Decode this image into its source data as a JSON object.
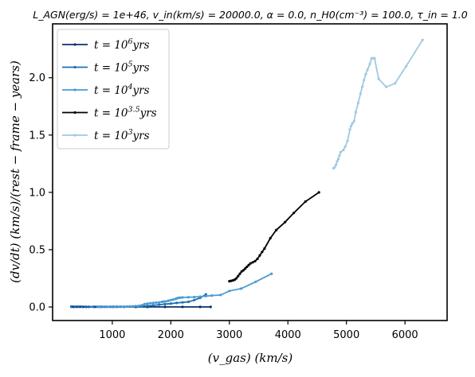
{
  "chart_data": {
    "type": "line",
    "title": "L_AGN(erg/s) = 1e+46, v_in(km/s) = 20000.0, α = 0.0, n_H0(cm⁻³) = 100.0, τ_in = 1.0",
    "xlabel": "(v_gas)   (km/s)",
    "ylabel": "(dv/dt)   (km/s)/(rest − frame − years)",
    "xlim": [
      -20,
      6720
    ],
    "ylim": [
      -0.118,
      2.47
    ],
    "xticks": [
      1000,
      2000,
      3000,
      4000,
      5000,
      6000
    ],
    "xtick_labels": [
      "1000",
      "2000",
      "3000",
      "4000",
      "5000",
      "6000"
    ],
    "yticks": [
      0.0,
      0.5,
      1.0,
      1.5,
      2.0
    ],
    "ytick_labels": [
      "0.0",
      "0.5",
      "1.0",
      "1.5",
      "2.0"
    ],
    "grid": false,
    "legend_position": "top-left",
    "series": [
      {
        "name": "t = 10^6 yrs",
        "color": "#08306b",
        "x": [
          300,
          330,
          360,
          400,
          450,
          500,
          550,
          600,
          700,
          800,
          900,
          1000,
          1200,
          1400,
          1600,
          1900,
          2200,
          2500,
          2680
        ],
        "y": [
          0.003,
          0.002,
          0.002,
          0.002,
          0.002,
          0.001,
          0.001,
          0.001,
          0.001,
          0.001,
          0.001,
          0.001,
          0.001,
          0.0005,
          0.0005,
          0.0005,
          0.0005,
          0.0005,
          0.0005
        ]
      },
      {
        "name": "t = 10^5 yrs",
        "color": "#1f6fb4",
        "x": [
          300,
          360,
          420,
          480,
          540,
          600,
          680,
          740,
          780,
          820,
          860,
          900,
          960,
          1020,
          1080,
          1140,
          1200,
          1300,
          1400,
          1500,
          1600,
          1700,
          1800,
          1900,
          2000,
          2100,
          2200,
          2300,
          2400,
          2500,
          2600
        ],
        "y": [
          0.004,
          0.003,
          0.003,
          0.003,
          0.002,
          0.002,
          0.002,
          0.002,
          0.002,
          0.002,
          0.002,
          0.002,
          0.002,
          0.002,
          0.002,
          0.003,
          0.003,
          0.004,
          0.005,
          0.007,
          0.01,
          0.014,
          0.02,
          0.025,
          0.03,
          0.035,
          0.04,
          0.045,
          0.06,
          0.08,
          0.11
        ]
      },
      {
        "name": "t = 10^4 yrs",
        "color": "#4a9bd0",
        "x": [
          760,
          800,
          850,
          900,
          950,
          1000,
          1050,
          1100,
          1150,
          1200,
          1250,
          1300,
          1350,
          1400,
          1450,
          1500,
          1550,
          1600,
          1650,
          1700,
          1750,
          1800,
          1850,
          1880,
          1920,
          1960,
          2000,
          2040,
          2080,
          2100,
          2130,
          2160,
          2200,
          2300,
          2400,
          2500,
          2600,
          2700,
          2850,
          3000,
          3200,
          3450,
          3720
        ],
        "y": [
          0.001,
          0.001,
          0.001,
          0.001,
          0.001,
          0.002,
          0.002,
          0.002,
          0.003,
          0.003,
          0.004,
          0.005,
          0.006,
          0.008,
          0.01,
          0.015,
          0.025,
          0.03,
          0.033,
          0.035,
          0.038,
          0.04,
          0.045,
          0.048,
          0.05,
          0.055,
          0.06,
          0.065,
          0.07,
          0.075,
          0.08,
          0.082,
          0.083,
          0.085,
          0.087,
          0.09,
          0.095,
          0.1,
          0.105,
          0.14,
          0.16,
          0.22,
          0.29
        ]
      },
      {
        "name": "t = 10^3.5 yrs",
        "color": "#000000",
        "x": [
          3000,
          3030,
          3060,
          3090,
          3120,
          3150,
          3180,
          3210,
          3240,
          3270,
          3300,
          3330,
          3360,
          3400,
          3440,
          3480,
          3520,
          3560,
          3600,
          3700,
          3800,
          3950,
          4100,
          4300,
          4530
        ],
        "y": [
          0.225,
          0.228,
          0.232,
          0.238,
          0.25,
          0.27,
          0.29,
          0.31,
          0.32,
          0.335,
          0.35,
          0.365,
          0.38,
          0.39,
          0.4,
          0.42,
          0.45,
          0.48,
          0.51,
          0.6,
          0.67,
          0.74,
          0.82,
          0.92,
          1.0
        ]
      },
      {
        "name": "t = 10^3 yrs",
        "color": "#9ecae1",
        "x": [
          4780,
          4800,
          4820,
          4840,
          4860,
          4880,
          4900,
          4950,
          4980,
          5020,
          5060,
          5080,
          5100,
          5130,
          5160,
          5200,
          5240,
          5270,
          5300,
          5330,
          5360,
          5400,
          5430,
          5460,
          5480,
          5550,
          5680,
          5830,
          6020,
          6300
        ],
        "y": [
          1.21,
          1.22,
          1.24,
          1.27,
          1.29,
          1.32,
          1.35,
          1.37,
          1.4,
          1.45,
          1.55,
          1.58,
          1.6,
          1.62,
          1.7,
          1.78,
          1.86,
          1.92,
          1.98,
          2.03,
          2.07,
          2.12,
          2.17,
          2.17,
          2.17,
          1.99,
          1.92,
          1.95,
          2.1,
          2.33
        ]
      }
    ]
  }
}
